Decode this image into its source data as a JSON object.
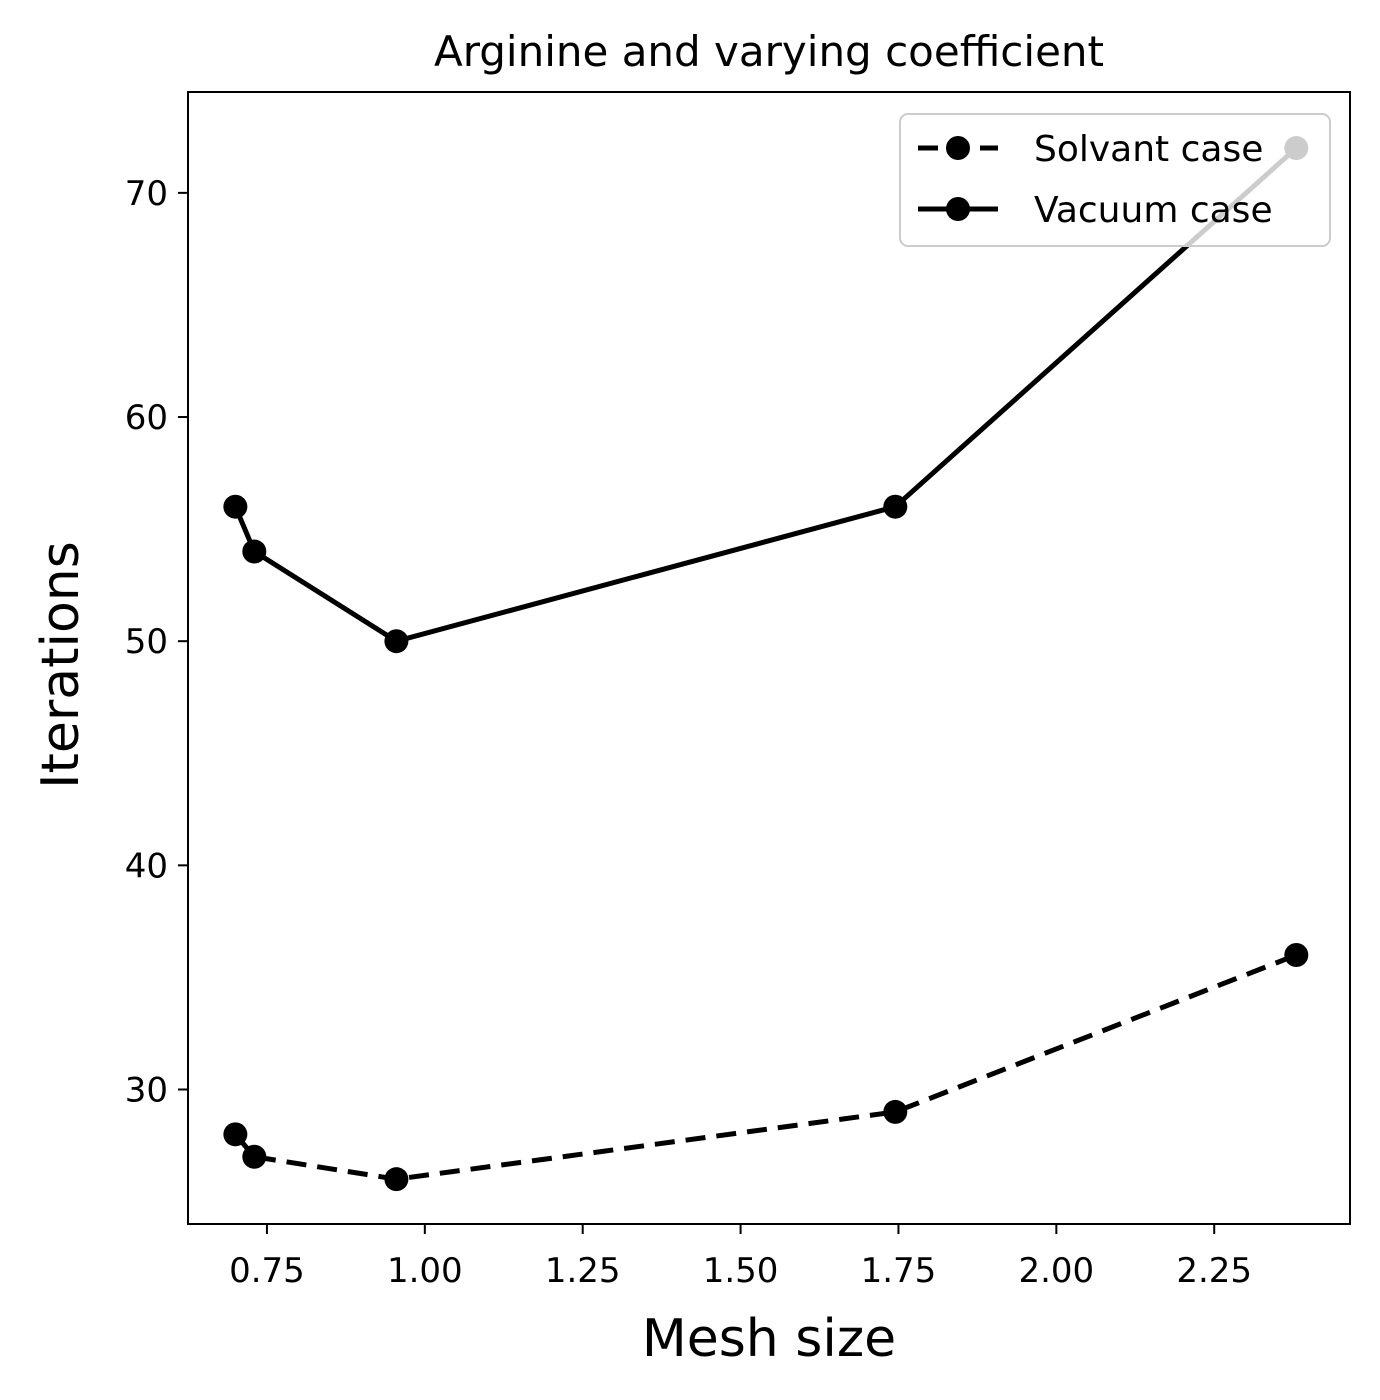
{
  "chart_data": {
    "type": "line",
    "title": "Arginine and varying coefficient",
    "xlabel": "Mesh size",
    "ylabel": "Iterations",
    "xlim": [
      0.625,
      2.465
    ],
    "ylim": [
      24,
      74.5
    ],
    "xticks": [
      0.75,
      1.0,
      1.25,
      1.5,
      1.75,
      2.0,
      2.25
    ],
    "xtick_labels": [
      "0.75",
      "1.00",
      "1.25",
      "1.50",
      "1.75",
      "2.00",
      "2.25"
    ],
    "yticks": [
      30,
      40,
      50,
      60,
      70
    ],
    "ytick_labels": [
      "30",
      "40",
      "50",
      "60",
      "70"
    ],
    "grid": false,
    "legend_position": "top-right",
    "series": [
      {
        "name": "Solvant case",
        "style": "dashed",
        "color": "#000000",
        "marker": "circle",
        "x": [
          0.7,
          0.73,
          0.955,
          1.745,
          2.38
        ],
        "y": [
          28,
          27,
          26,
          29,
          36
        ]
      },
      {
        "name": "Vacuum case",
        "style": "solid",
        "color": "#000000",
        "marker": "circle",
        "x": [
          0.7,
          0.73,
          0.955,
          1.745,
          2.38
        ],
        "y": [
          56,
          54,
          50,
          56,
          72
        ]
      }
    ]
  }
}
